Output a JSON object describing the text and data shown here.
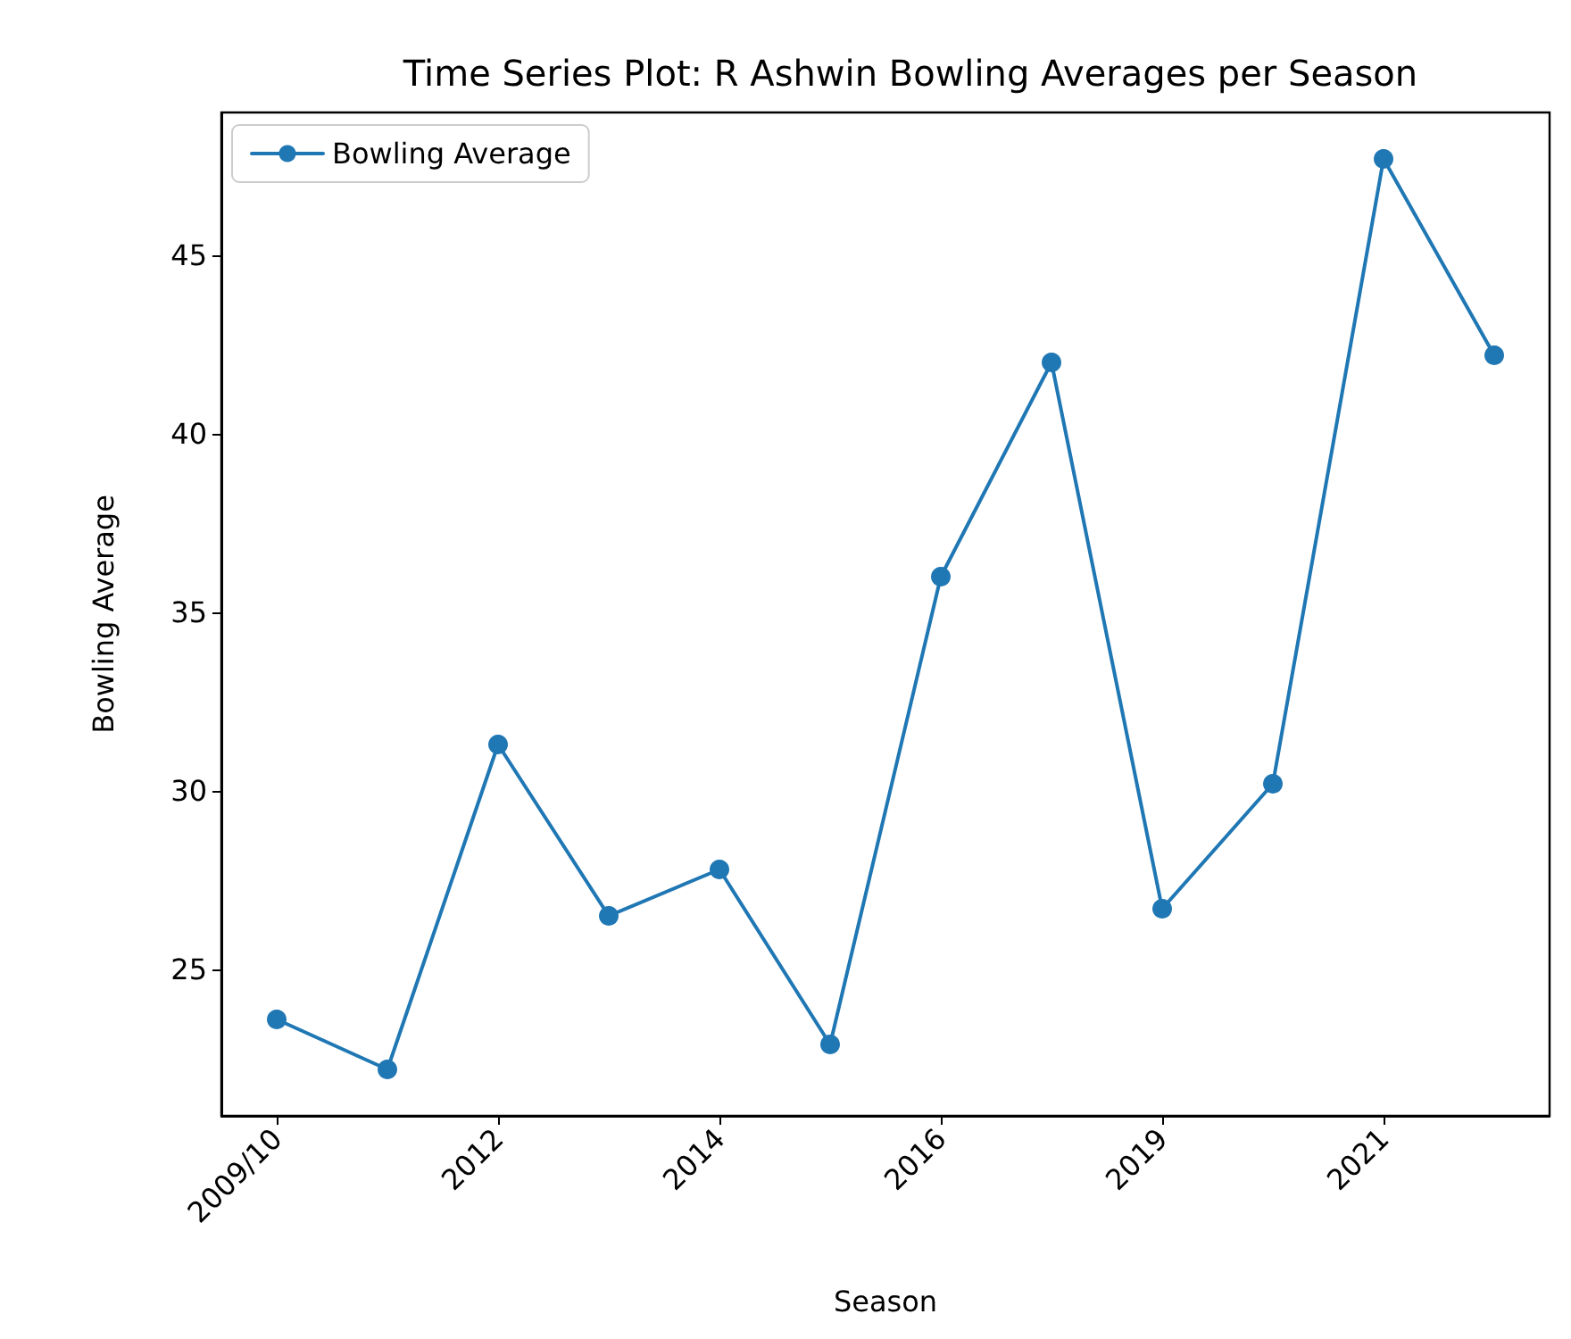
{
  "chart_data": {
    "type": "line",
    "title": "Time Series Plot: R Ashwin Bowling Averages per Season",
    "xlabel": "Season",
    "ylabel": "Bowling Average",
    "categories": [
      "2009/10",
      null,
      "2012",
      null,
      "2014",
      null,
      "2016",
      null,
      "2019",
      null,
      "2021",
      null
    ],
    "series": [
      {
        "name": "Bowling Average",
        "color": "#1f77b4",
        "values": [
          23.6,
          22.2,
          31.3,
          26.5,
          27.8,
          22.9,
          36.0,
          42.0,
          26.7,
          30.2,
          47.7,
          42.2
        ]
      }
    ],
    "ylim": [
      20.9,
      49.0
    ],
    "yticks": [
      25,
      30,
      35,
      40,
      45
    ],
    "grid": false,
    "legend": "top left",
    "marker": "circle",
    "line_style": "solid"
  }
}
